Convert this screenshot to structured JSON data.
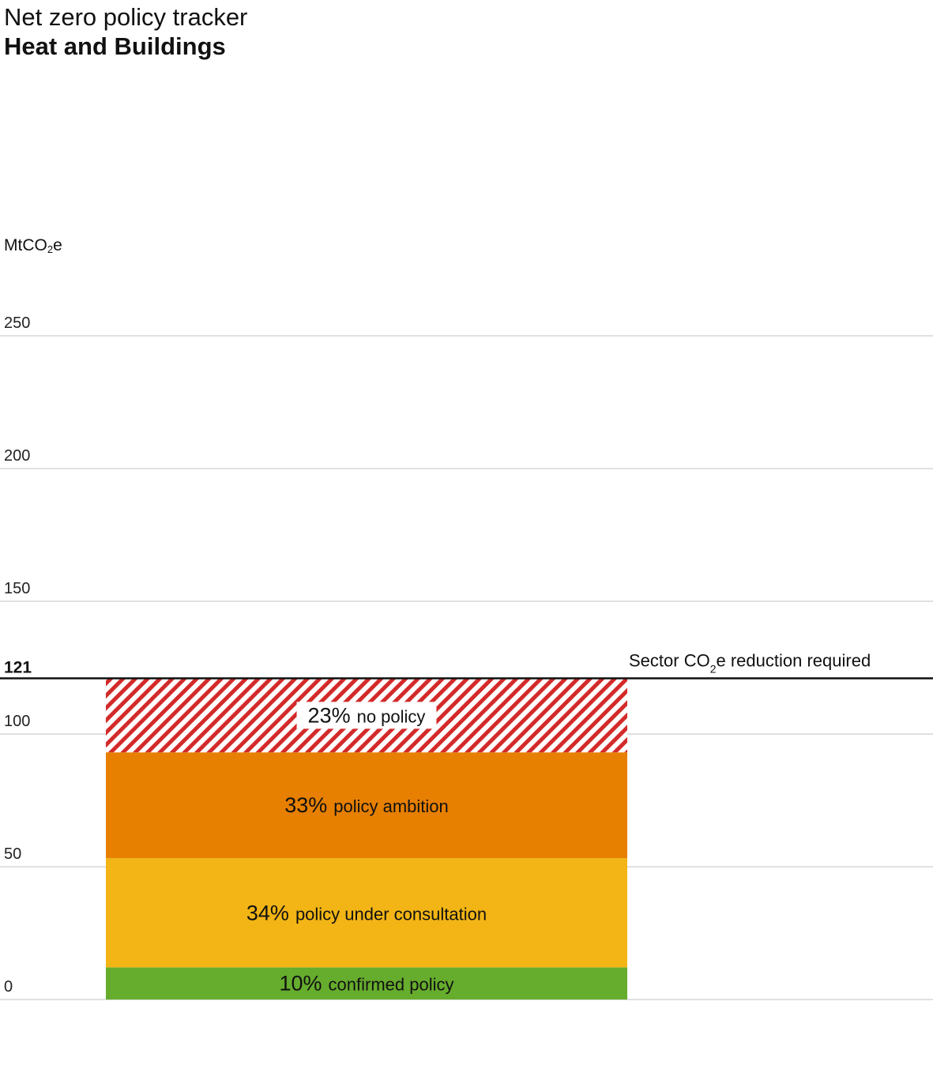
{
  "header": {
    "title": "Net zero policy tracker",
    "subtitle": "Heat and Buildings",
    "unit_main": "MtCO",
    "unit_sub": "2",
    "unit_tail": "e"
  },
  "chart_data": {
    "type": "bar",
    "stacked": true,
    "ylabel": "MtCO2e",
    "ylim": [
      0,
      250
    ],
    "yticks": [
      "0",
      "50",
      "100",
      "150",
      "200",
      "250"
    ],
    "ytick_values": [
      0,
      50,
      100,
      150,
      200,
      250
    ],
    "grid": true,
    "series": [
      {
        "pct": "10%",
        "label": "confirmed policy",
        "value": 12.1,
        "color": "#66ac2d"
      },
      {
        "pct": "34%",
        "label": "policy under consultation",
        "value": 41.1,
        "color": "#f2b515"
      },
      {
        "pct": "33%",
        "label": "policy ambition",
        "value": 39.9,
        "color": "#e77f00"
      },
      {
        "pct": "23%",
        "label": "no policy",
        "value": 27.9,
        "color": "#d32a2a",
        "pattern": "hatched"
      }
    ],
    "reference_line": {
      "value": 121,
      "value_label": "121",
      "label_main": "Sector CO",
      "label_sub": "2",
      "label_tail": "e reduction required"
    }
  }
}
